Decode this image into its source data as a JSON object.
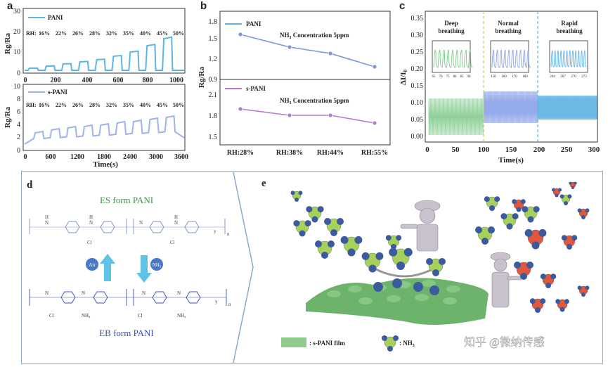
{
  "panels": {
    "a_label": "a",
    "b_label": "b",
    "c_label": "c",
    "d_label": "d",
    "e_label": "e"
  },
  "panel_a": {
    "top": {
      "legend": "PANI",
      "ylabel": "Rg/Ra",
      "rh_prefix": "RH:",
      "rh_values": [
        "16%",
        "22%",
        "26%",
        "28%",
        "32%",
        "35%",
        "40%",
        "45%",
        "50%"
      ],
      "yticks": [
        "0",
        "10",
        "20",
        "30"
      ],
      "xticks": [
        "0",
        "200",
        "400",
        "600",
        "800",
        "1000"
      ],
      "color": "#5bb5e6"
    },
    "bottom": {
      "legend": "s-PANI",
      "ylabel": "Rg/Ra",
      "rh_prefix": "RH:",
      "rh_values": [
        "16%",
        "22%",
        "26%",
        "28%",
        "32%",
        "35%",
        "40%",
        "45%",
        "50%"
      ],
      "yticks": [
        "0",
        "2",
        "4",
        "6",
        "8",
        "10"
      ],
      "xticks": [
        "0",
        "600",
        "1200",
        "1800",
        "2400",
        "3000",
        "3600"
      ],
      "xlabel": "Time(s)",
      "color": "#9fb3e8"
    }
  },
  "panel_b": {
    "ylabel": "Rg/Ra",
    "top": {
      "legend": "PANI",
      "annotation": "NH",
      "annotation_sub": "3",
      "annotation_rest": " Concentration 5ppm",
      "yticks": [
        "0.9",
        "1.2",
        "1.5",
        "1.8"
      ],
      "color": "#7b96e0"
    },
    "bottom": {
      "legend": "s-PANI",
      "annotation": "NH",
      "annotation_sub": "3",
      "annotation_rest": " Concentration 5ppm",
      "yticks": [
        "1.5",
        "1.8",
        "2.1"
      ],
      "color": "#b47cd4"
    },
    "xticks": [
      "RH:28%",
      "RH:38%",
      "RH:44%",
      "RH:55%"
    ]
  },
  "panel_c": {
    "ylabel": "ΔI/I",
    "ylabel_sub": "0",
    "xlabel": "Time(s)",
    "yticks": [
      "0.00",
      "0.05",
      "0.10",
      "0.15",
      "0.20",
      "0.25",
      "0.30",
      "0.35"
    ],
    "xticks": [
      "0",
      "50",
      "100",
      "150",
      "200",
      "250",
      "300"
    ],
    "insets": [
      {
        "title_l1": "Deep",
        "title_l2": "breathing",
        "ticks": [
          "65",
          "70",
          "75",
          "80",
          "85",
          "90"
        ],
        "color": "#7fc98a"
      },
      {
        "title_l1": "Normal",
        "title_l2": "breathing",
        "ticks": [
          "150",
          "160",
          "170",
          "180"
        ],
        "color": "#8fa6e8"
      },
      {
        "title_l1": "Rapid",
        "title_l2": "breathing",
        "ticks": [
          "264",
          "267",
          "270",
          "273"
        ],
        "color": "#6ab7e8"
      }
    ],
    "colors": {
      "deep": "#8fd19a",
      "normal": "#95aaec",
      "rapid": "#6cb9e6"
    }
  },
  "panel_d": {
    "es_title": "ES form PANI",
    "eb_title": "EB form PANI",
    "air_label": "Air",
    "nh3_label": "NH₃",
    "cl_label": "Cl",
    "nh4_label": "NH₄",
    "h_label": "H",
    "n_label": "N",
    "y_label": "y",
    "n_sub": "n"
  },
  "panel_e": {
    "film_legend": ": s-PANI film",
    "nh3_legend": ": NH",
    "nh3_legend_sub": "3",
    "watermark": "知乎 @微纳传感"
  }
}
